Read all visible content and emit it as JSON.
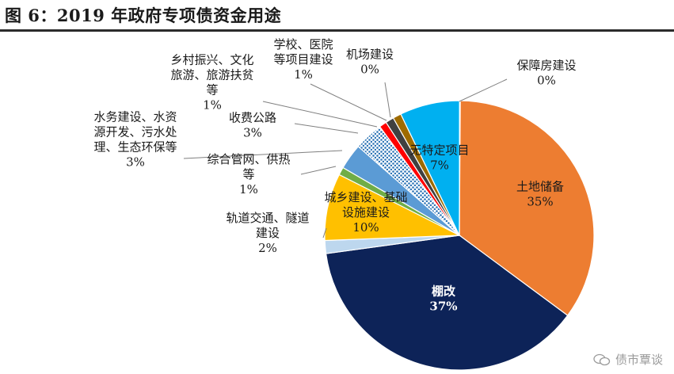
{
  "title": "图 6：2019 年政府专项债资金用途",
  "watermark": "债市覃谈",
  "chart_data": {
    "type": "pie",
    "title": "图 6：2019 年政府专项债资金用途",
    "start_angle_deg": 0,
    "direction": "clockwise",
    "slices": [
      {
        "name": "土地储备",
        "value": 35,
        "label": "35%",
        "color": "#ED7D31",
        "label_lines": [
          "土地储备",
          "35%"
        ]
      },
      {
        "name": "棚改",
        "value": 37,
        "label": "37%",
        "color": "#0D2358",
        "label_lines": [
          "棚改",
          "37%"
        ]
      },
      {
        "name": "轨道交通、隧道建设",
        "value": 2,
        "label": "2%",
        "color": "#BDD7EE",
        "label_lines": [
          "轨道交通、隧道",
          "建设",
          "2%"
        ]
      },
      {
        "name": "城乡建设、基础设施建设",
        "value": 10,
        "label": "10%",
        "color": "#FFC000",
        "label_lines": [
          "城乡建设、基础",
          "设施建设",
          "10%"
        ]
      },
      {
        "name": "综合管网、供热等",
        "value": 1,
        "label": "1%",
        "color": "#70AD47",
        "label_lines": [
          "综合管网、供热",
          "等",
          "1%"
        ]
      },
      {
        "name": "水务建设、水资源开发、污水处理、生态环保等",
        "value": 3,
        "label": "3%",
        "color": "#5B9BD5",
        "label_lines": [
          "水务建设、水资",
          "源开发、污水处",
          "理、生态环保等",
          "3%"
        ]
      },
      {
        "name": "收费公路",
        "value": 3,
        "label": "3%",
        "color": "#2E75B6",
        "pattern": "dots",
        "label_lines": [
          "收费公路",
          "3%"
        ]
      },
      {
        "name": "乡村振兴、文化旅游、旅游扶贫等",
        "value": 1,
        "label": "1%",
        "color": "#FF0000",
        "label_lines": [
          "乡村振兴、文化",
          "旅游、旅游扶贫",
          "等",
          "1%"
        ]
      },
      {
        "name": "学校、医院等项目建设",
        "value": 1,
        "label": "1%",
        "color": "#404040",
        "label_lines": [
          "学校、医院",
          "等项目建设",
          "1%"
        ]
      },
      {
        "name": "机场建设",
        "value": 0,
        "label": "0%",
        "color": "#9E6B00",
        "label_lines": [
          "机场建设",
          "0%"
        ]
      },
      {
        "name": "无特定项目",
        "value": 7,
        "label": "7%",
        "color": "#00B0F0",
        "label_lines": [
          "无特定项目",
          "7%"
        ]
      },
      {
        "name": "保障房建设",
        "value": 0,
        "label": "0%",
        "color": "#A5A5A5",
        "label_lines": [
          "保障房建设",
          "0%"
        ]
      }
    ]
  }
}
